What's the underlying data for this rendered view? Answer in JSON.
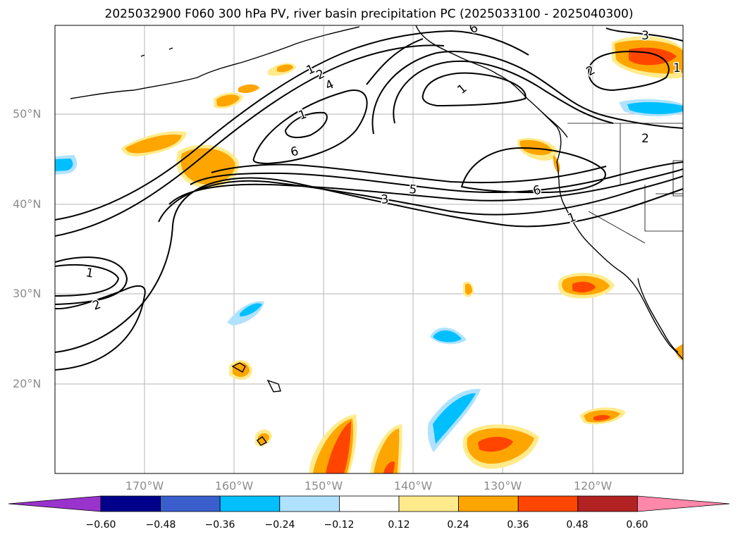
{
  "title": "2025032900 F060 300 hPa PV, river basin precipitation PC (2025033100 - 2025040300)",
  "lat_labels": [
    "50°N",
    "40°N",
    "30°N",
    "20°N"
  ],
  "lon_labels": [
    "170°W",
    "160°W",
    "150°W",
    "140°W",
    "130°W",
    "120°W"
  ],
  "contour_labels": [
    "1",
    "2",
    "4",
    "1",
    "6",
    "3",
    "5",
    "6",
    "1",
    "1",
    "2",
    "1",
    "2",
    "3",
    "2",
    "1",
    "6"
  ],
  "colorbar": {
    "labels": [
      "−0.60",
      "−0.48",
      "−0.36",
      "−0.24",
      "−0.12",
      "0.12",
      "0.24",
      "0.36",
      "0.48",
      "0.60"
    ],
    "colors": [
      "#9933cc",
      "#00008b",
      "#3a5fcd",
      "#00bfff",
      "#b0e2ff",
      "#ffffff",
      "#ffeb8c",
      "#ffa500",
      "#ff4500",
      "#b22222",
      "#ff88aa"
    ]
  }
}
